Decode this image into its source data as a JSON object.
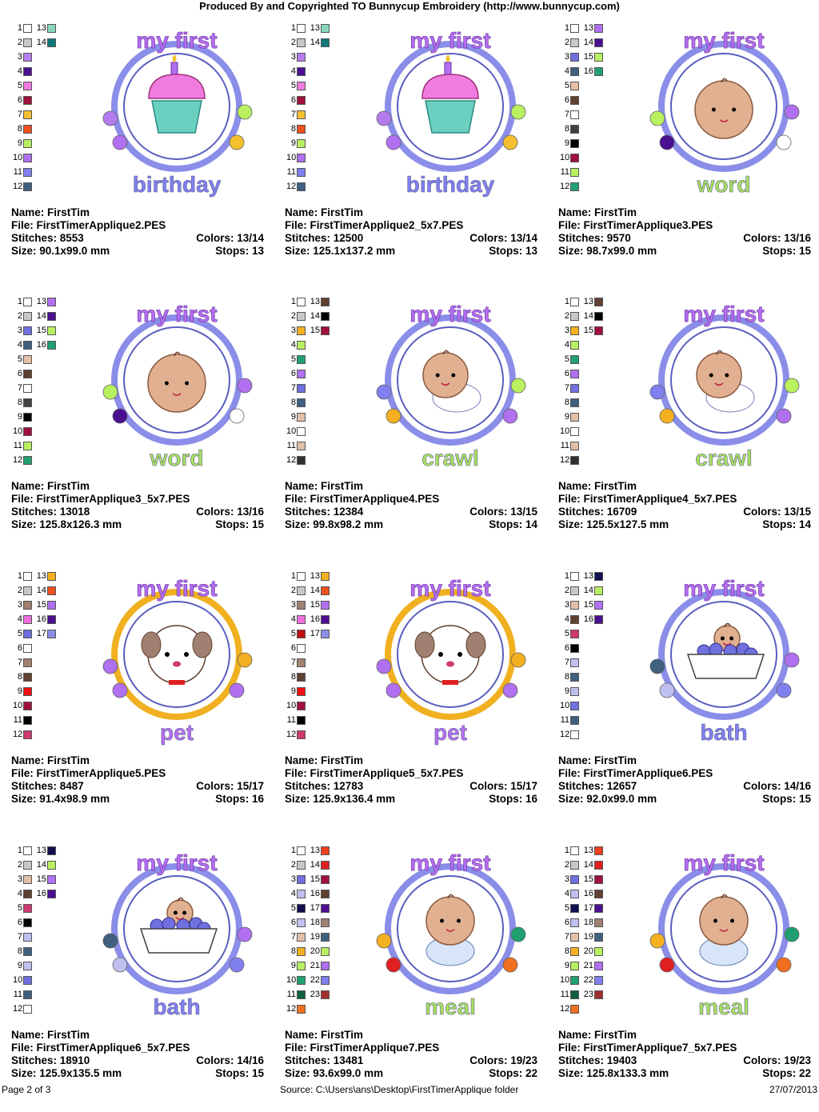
{
  "header": "Produced By and Copyrighted TO Bunnycup Embroidery (http://www.bunnycup.com)",
  "footer": {
    "page": "Page 2 of 3",
    "source": "Source: C:\\Users\\ans\\Desktop\\FirstTimerApplique folder",
    "date": "27/07/2013"
  },
  "labels": {
    "name": "Name:",
    "file": "File:",
    "stitches": "Stitches:",
    "size": "Size:",
    "colors": "Colors:",
    "stops": "Stops:"
  },
  "designs": [
    {
      "name": "FirstTim",
      "file": "FirstTimerApplique2.PES",
      "stitches": "8553",
      "colors": "13/14",
      "size": "90.1x99.0 mm",
      "stops": "13",
      "top": "my first",
      "bottom": "birthday",
      "motif": "cupcake",
      "ring": "#8a8ee8",
      "swatches": [
        "#ffffff",
        "#c8c8c8",
        "#b57cf0",
        "#4a1090",
        "#f07ce0",
        "#a0103c",
        "#f4c030",
        "#f05020",
        "#b8f060",
        "#b070f0",
        "#8080f0",
        "#406080",
        "#88d8c0",
        "#107878"
      ]
    },
    {
      "name": "FirstTim",
      "file": "FirstTimerApplique2_5x7.PES",
      "stitches": "12500",
      "colors": "13/14",
      "size": "125.1x137.2 mm",
      "stops": "13",
      "top": "my first",
      "bottom": "birthday",
      "motif": "cupcake",
      "ring": "#8a8ee8",
      "swatches": [
        "#ffffff",
        "#c8c8c8",
        "#b57cf0",
        "#4a1090",
        "#f07ce0",
        "#a0103c",
        "#f4c030",
        "#f05020",
        "#b8f060",
        "#b070f0",
        "#8080f0",
        "#406080",
        "#88d8c0",
        "#107878"
      ]
    },
    {
      "name": "FirstTim",
      "file": "FirstTimerApplique3.PES",
      "stitches": "9570",
      "colors": "13/16",
      "size": "98.7x99.0 mm",
      "stops": "15",
      "top": "my first",
      "bottom": "word",
      "motif": "face",
      "ring": "#8a8ee8",
      "swatches": [
        "#ffffff",
        "#c8c8c8",
        "#7070e0",
        "#406080",
        "#e8c0a8",
        "#604030",
        "#ffffff",
        "#404040",
        "#000000",
        "#a0103c",
        "#b8f060",
        "#20a070",
        "#b070f0",
        "#4a1090",
        "#b8f060",
        "#20a070"
      ]
    },
    {
      "name": "FirstTim",
      "file": "FirstTimerApplique3_5x7.PES",
      "stitches": "13018",
      "colors": "13/16",
      "size": "125.8x126.3 mm",
      "stops": "15",
      "top": "my first",
      "bottom": "word",
      "motif": "face",
      "ring": "#8a8ee8",
      "swatches": [
        "#ffffff",
        "#c8c8c8",
        "#7070e0",
        "#406080",
        "#e8c0a8",
        "#604030",
        "#ffffff",
        "#404040",
        "#000000",
        "#a0103c",
        "#b8f060",
        "#20a070",
        "#b070f0",
        "#4a1090",
        "#b8f060",
        "#20a070"
      ]
    },
    {
      "name": "FirstTim",
      "file": "FirstTimerApplique4.PES",
      "stitches": "12384",
      "colors": "13/15",
      "size": "99.8x98.2 mm",
      "stops": "14",
      "top": "my first",
      "bottom": "crawl",
      "motif": "baby",
      "ring": "#8a8ee8",
      "swatches": [
        "#ffffff",
        "#c8c8c8",
        "#f4b020",
        "#b8f060",
        "#20a070",
        "#b070f0",
        "#7070e0",
        "#406080",
        "#e0c0a8",
        "#ffffff",
        "#e0c0a8",
        "#303030",
        "#604030",
        "#000000",
        "#a0103c"
      ]
    },
    {
      "name": "FirstTim",
      "file": "FirstTimerApplique4_5x7.PES",
      "stitches": "16709",
      "colors": "13/15",
      "size": "125.5x127.5 mm",
      "stops": "14",
      "top": "my first",
      "bottom": "crawl",
      "motif": "baby",
      "ring": "#8a8ee8",
      "swatches": [
        "#ffffff",
        "#c8c8c8",
        "#f4b020",
        "#b8f060",
        "#20a070",
        "#b070f0",
        "#7070e0",
        "#406080",
        "#e0c0a8",
        "#ffffff",
        "#e0c0a8",
        "#303030",
        "#604030",
        "#000000",
        "#a0103c"
      ]
    },
    {
      "name": "FirstTim",
      "file": "FirstTimerApplique5.PES",
      "stitches": "8487",
      "colors": "15/17",
      "size": "91.4x98.9 mm",
      "stops": "16",
      "top": "my first",
      "bottom": "pet",
      "motif": "puppy",
      "ring": "#f0b020",
      "swatches": [
        "#ffffff",
        "#c8c8c8",
        "#a08070",
        "#f070e0",
        "#7070e0",
        "#ffffff",
        "#a08070",
        "#604030",
        "#f01010",
        "#a0103c",
        "#000000",
        "#d03870",
        "#f4b020",
        "#f05020",
        "#b070f0",
        "#4a1090",
        "#8a8ee8"
      ]
    },
    {
      "name": "FirstTim",
      "file": "FirstTimerApplique5_5x7.PES",
      "stitches": "12783",
      "colors": "15/17",
      "size": "125.9x136.4 mm",
      "stops": "16",
      "top": "my first",
      "bottom": "pet",
      "motif": "puppy",
      "ring": "#f0b020",
      "swatches": [
        "#ffffff",
        "#c8c8c8",
        "#a08070",
        "#f070e0",
        "#c01010",
        "#ffffff",
        "#a08070",
        "#604030",
        "#f01010",
        "#a0103c",
        "#000000",
        "#d03870",
        "#f4b020",
        "#f05020",
        "#b070f0",
        "#4a1090",
        "#8a8ee8"
      ]
    },
    {
      "name": "FirstTim",
      "file": "FirstTimerApplique6.PES",
      "stitches": "12657",
      "colors": "14/16",
      "size": "92.0x99.0 mm",
      "stops": "15",
      "top": "my first",
      "bottom": "bath",
      "motif": "tub",
      "ring": "#8a8ee8",
      "swatches": [
        "#ffffff",
        "#c8c8c8",
        "#e0c0a8",
        "#604030",
        "#d03870",
        "#000000",
        "#c0c0f0",
        "#406080",
        "#c0c0f0",
        "#7070e0",
        "#406080",
        "#ffffff",
        "#101050",
        "#b8f060",
        "#b070f0",
        "#4a1090"
      ]
    },
    {
      "name": "FirstTim",
      "file": "FirstTimerApplique6_5x7.PES",
      "stitches": "18910",
      "colors": "14/16",
      "size": "125.9x135.5 mm",
      "stops": "15",
      "top": "my first",
      "bottom": "bath",
      "motif": "tub",
      "ring": "#8a8ee8",
      "swatches": [
        "#ffffff",
        "#c8c8c8",
        "#e0c0a8",
        "#604030",
        "#d03870",
        "#000000",
        "#c0c0f0",
        "#406080",
        "#c0c0f0",
        "#7070e0",
        "#406080",
        "#ffffff",
        "#101050",
        "#b8f060",
        "#b070f0",
        "#4a1090"
      ]
    },
    {
      "name": "FirstTim",
      "file": "FirstTimerApplique7.PES",
      "stitches": "13481",
      "colors": "19/23",
      "size": "93.6x99.0 mm",
      "stops": "22",
      "top": "my first",
      "bottom": "meal",
      "motif": "sitbaby",
      "ring": "#8a8ee8",
      "swatches": [
        "#ffffff",
        "#c8c8c8",
        "#7070e0",
        "#c0c0f0",
        "#101050",
        "#c0c0f0",
        "#e0c0a8",
        "#f4b020",
        "#b8f060",
        "#20a070",
        "#106040",
        "#f07020",
        "#f04020",
        "#e02020",
        "#a0103c",
        "#604030",
        "#4a1090",
        "#a08070",
        "#406080",
        "#b8f060",
        "#b070f0",
        "#8080f0",
        "#a03030"
      ]
    },
    {
      "name": "FirstTim",
      "file": "FirstTimerApplique7_5x7.PES",
      "stitches": "19403",
      "colors": "19/23",
      "size": "125.8x133.3 mm",
      "stops": "22",
      "top": "my first",
      "bottom": "meal",
      "motif": "sitbaby",
      "ring": "#8a8ee8",
      "swatches": [
        "#ffffff",
        "#c8c8c8",
        "#7070e0",
        "#c0c0f0",
        "#101050",
        "#c0c0f0",
        "#e0c0a8",
        "#f4b020",
        "#b8f060",
        "#20a070",
        "#106040",
        "#f07020",
        "#f04020",
        "#e02020",
        "#a0103c",
        "#604030",
        "#4a1090",
        "#a08070",
        "#406080",
        "#b8f060",
        "#b070f0",
        "#8080f0",
        "#a03030"
      ]
    }
  ]
}
